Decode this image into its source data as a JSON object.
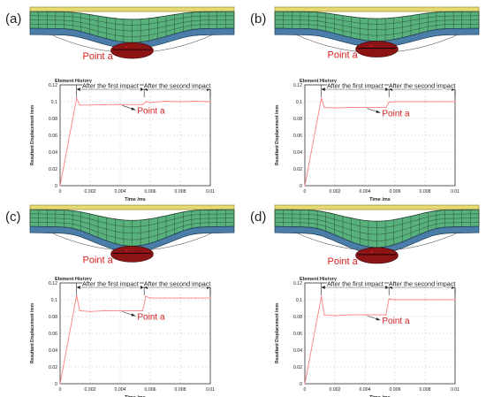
{
  "colors": {
    "mesh_fill": "#58b07c",
    "mesh_line": "#1d3d28",
    "top_strip": "#e6d872",
    "base_plate": "#4a7ea8",
    "impactor": "#8c1414",
    "curve": "#ff8080",
    "annotation": "#d42020",
    "grid": "#c8c8c8",
    "axis": "#333333"
  },
  "panels": [
    {
      "label": "(a)",
      "mesh_depth": 0.62,
      "point_label": "Point a",
      "chart_title": "Element History",
      "phase_first": "After the first impact",
      "phase_second": "After the second impact",
      "curve_label": "Point a"
    },
    {
      "label": "(b)",
      "mesh_depth": 0.56,
      "point_label": "Point a",
      "chart_title": "Element History",
      "phase_first": "After the first impact",
      "phase_second": "After the second impact",
      "curve_label": "Point a"
    },
    {
      "label": "(c)",
      "mesh_depth": 0.86,
      "point_label": "Point a",
      "chart_title": "Element History",
      "phase_first": "After the first impact",
      "phase_second": "After the second impact",
      "curve_label": "Point a"
    },
    {
      "label": "(d)",
      "mesh_depth": 0.92,
      "point_label": "Point a",
      "chart_title": "Element History",
      "phase_first": "After the first impact",
      "phase_second": "After the second impact",
      "curve_label": "Point a"
    }
  ],
  "chart_data": [
    {
      "type": "line",
      "title": "Element History",
      "xlabel": "Time /ms",
      "ylabel": "Resultant Displacement /mm",
      "xlim": [
        0,
        0.01
      ],
      "ylim": [
        0,
        0.12
      ],
      "xticks": [
        "0",
        "0.002",
        "0.004",
        "0.006",
        "0.008",
        "0.01"
      ],
      "yticks": [
        "0",
        "0.02",
        "0.04",
        "0.06",
        "0.08",
        "0.1",
        "0.12"
      ],
      "grid": true,
      "annotations": [
        "After the first impact",
        "After the second impact",
        "Point a"
      ],
      "x": [
        0,
        0.0011,
        0.0013,
        0.002,
        0.003,
        0.004,
        0.0055,
        0.0057,
        0.006,
        0.007,
        0.008,
        0.009,
        0.01
      ],
      "y": [
        0,
        0.104,
        0.096,
        0.096,
        0.0965,
        0.0965,
        0.0965,
        0.1,
        0.099,
        0.1005,
        0.1,
        0.1005,
        0.1
      ]
    },
    {
      "type": "line",
      "title": "Element History",
      "xlabel": "Time /ms",
      "ylabel": "Resultant Displacement /mm",
      "xlim": [
        0,
        0.01
      ],
      "ylim": [
        0,
        0.12
      ],
      "xticks": [
        "0",
        "0.002",
        "0.004",
        "0.006",
        "0.008",
        "0.01"
      ],
      "yticks": [
        "0",
        "0.02",
        "0.04",
        "0.06",
        "0.08",
        "0.1",
        "0.12"
      ],
      "grid": true,
      "annotations": [
        "After the first impact",
        "After the second impact",
        "Point a"
      ],
      "x": [
        0,
        0.0011,
        0.0013,
        0.002,
        0.003,
        0.004,
        0.0054,
        0.0056,
        0.006,
        0.007,
        0.008,
        0.009,
        0.01
      ],
      "y": [
        0,
        0.104,
        0.093,
        0.0925,
        0.093,
        0.093,
        0.093,
        0.0995,
        0.1,
        0.1,
        0.1,
        0.1,
        0.1
      ]
    },
    {
      "type": "line",
      "title": "Element History",
      "xlabel": "Time /ms",
      "ylabel": "Resultant Displacement /mm",
      "xlim": [
        0,
        0.01
      ],
      "ylim": [
        0,
        0.12
      ],
      "xticks": [
        "0",
        "0.002",
        "0.004",
        "0.006",
        "0.008",
        "0.01"
      ],
      "yticks": [
        "0",
        "0.02",
        "0.04",
        "0.06",
        "0.08",
        "0.1",
        "0.12"
      ],
      "grid": true,
      "annotations": [
        "After the first impact",
        "After the second impact",
        "Point a"
      ],
      "x": [
        0,
        0.0011,
        0.0013,
        0.002,
        0.003,
        0.004,
        0.0055,
        0.0057,
        0.006,
        0.007,
        0.008,
        0.009,
        0.01
      ],
      "y": [
        0,
        0.105,
        0.087,
        0.086,
        0.087,
        0.087,
        0.087,
        0.104,
        0.102,
        0.102,
        0.102,
        0.102,
        0.102
      ]
    },
    {
      "type": "line",
      "title": "Element History",
      "xlabel": "Time /ms",
      "ylabel": "Resultant Displacement /mm",
      "xlim": [
        0,
        0.01
      ],
      "ylim": [
        0,
        0.12
      ],
      "xticks": [
        "0",
        "0.002",
        "0.004",
        "0.006",
        "0.008",
        "0.01"
      ],
      "yticks": [
        "0",
        "0.02",
        "0.04",
        "0.06",
        "0.08",
        "0.1",
        "0.12"
      ],
      "grid": true,
      "annotations": [
        "After the first impact",
        "After the second impact",
        "Point a"
      ],
      "x": [
        0,
        0.0011,
        0.0013,
        0.002,
        0.003,
        0.004,
        0.0054,
        0.0056,
        0.006,
        0.007,
        0.008,
        0.009,
        0.01
      ],
      "y": [
        0,
        0.104,
        0.082,
        0.081,
        0.082,
        0.082,
        0.082,
        0.101,
        0.1,
        0.1,
        0.1,
        0.1,
        0.1
      ]
    }
  ]
}
